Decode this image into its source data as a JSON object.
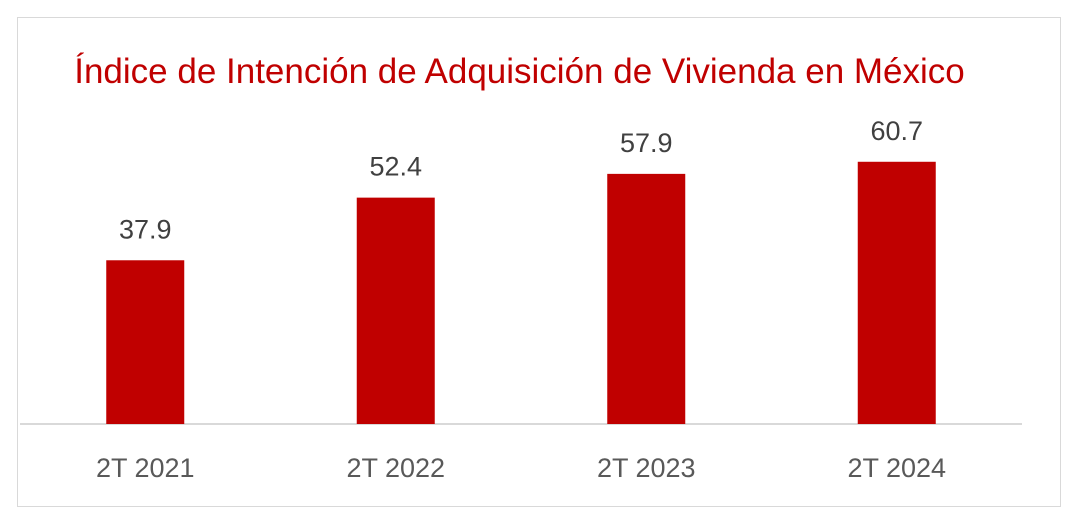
{
  "chart_data": {
    "type": "bar",
    "title": "Índice de Intención de Adquisición de Vivienda en México",
    "categories": [
      "2T 2021",
      "2T 2022",
      "2T 2023",
      "2T 2024"
    ],
    "values": [
      37.9,
      52.4,
      57.9,
      60.7
    ],
    "data_labels": [
      "37.9",
      "52.4",
      "57.9",
      "60.7"
    ],
    "xlabel": "",
    "ylabel": "",
    "ylim": [
      0,
      70
    ],
    "grid": false,
    "legend": "none",
    "colors": {
      "bar": "#c00000",
      "title": "#c00000",
      "axis": "#d9d9d9"
    }
  }
}
